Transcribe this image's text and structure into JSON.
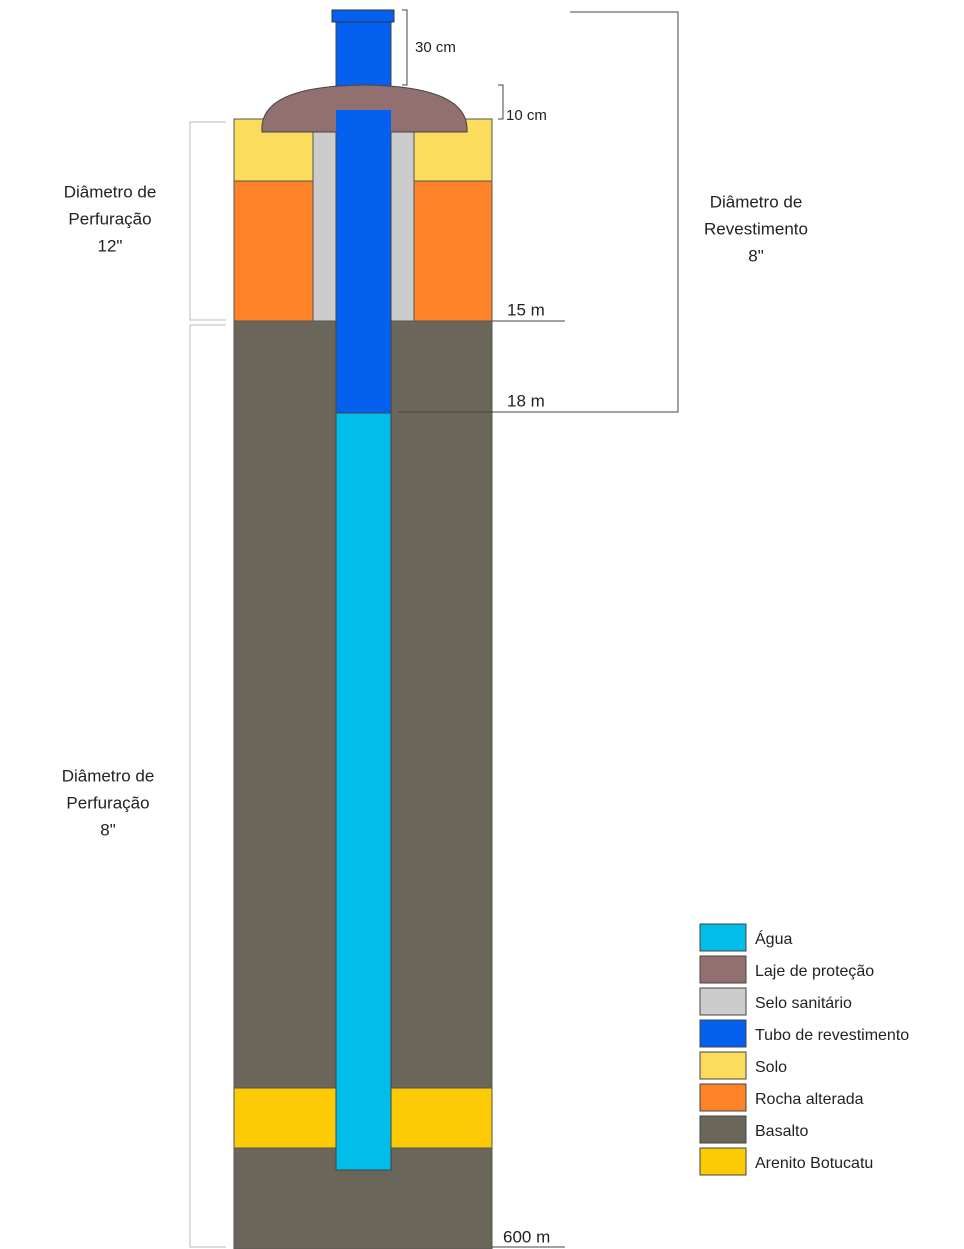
{
  "annotations": {
    "tube_height": "30 cm",
    "slab_height": "10 cm",
    "depth_15": "15 m",
    "depth_18": "18 m",
    "depth_600": "600 m",
    "casing_diameter": [
      "Diâmetro de",
      "Revestimento",
      "8\""
    ],
    "drill_diameter_top": [
      "Diâmetro de",
      "Perfuração",
      "12\""
    ],
    "drill_diameter_bottom": [
      "Diâmetro de",
      "Perfuração",
      "8\""
    ]
  },
  "legend": [
    {
      "label": "Água",
      "color": "#00bde9"
    },
    {
      "label": "Laje de proteção",
      "color": "#937070"
    },
    {
      "label": "Selo sanitário",
      "color": "#cccccc"
    },
    {
      "label": "Tubo de revestimento",
      "color": "#0461f0"
    },
    {
      "label": "Solo",
      "color": "#fcdc5c"
    },
    {
      "label": "Rocha alterada",
      "color": "#fd8228"
    },
    {
      "label": "Basalto",
      "color": "#6b665a"
    },
    {
      "label": "Arenito Botucatu",
      "color": "#fccb05"
    }
  ]
}
